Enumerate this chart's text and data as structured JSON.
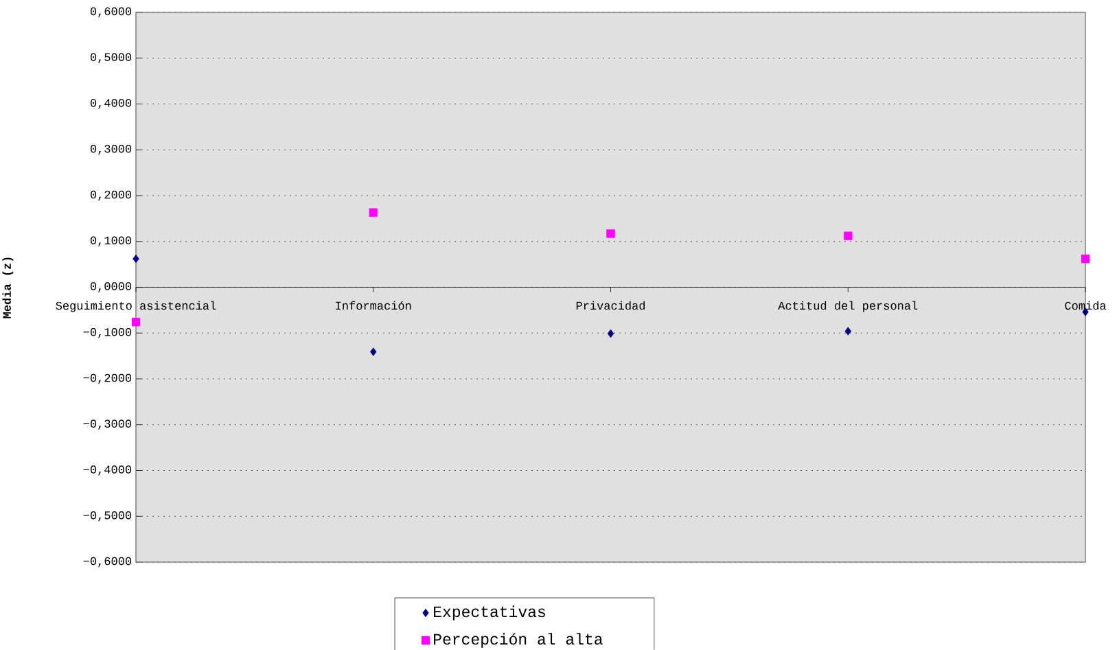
{
  "chart_data": {
    "type": "scatter",
    "ylabel": "Media (z)",
    "categories": [
      "Seguimiento asistencial",
      "Información",
      "Privacidad",
      "Actitud del personal",
      "Comida"
    ],
    "series": [
      {
        "name": "Expectativas",
        "color": "#000080",
        "marker": "diamond",
        "values": [
          0.062,
          -0.141,
          -0.101,
          -0.096,
          -0.054
        ]
      },
      {
        "name": "Percepción al alta",
        "color": "#ff00ff",
        "marker": "square",
        "values": [
          -0.076,
          0.163,
          0.117,
          0.112,
          0.062
        ]
      }
    ],
    "ylim": [
      -0.6,
      0.6
    ],
    "yticks": [
      {
        "value": -0.6,
        "label": "−0,6000"
      },
      {
        "value": -0.5,
        "label": "−0,5000"
      },
      {
        "value": -0.4,
        "label": "−0,4000"
      },
      {
        "value": -0.3,
        "label": "−0,3000"
      },
      {
        "value": -0.2,
        "label": "−0,2000"
      },
      {
        "value": -0.1,
        "label": "−0,1000"
      },
      {
        "value": 0,
        "label": "0,0000"
      },
      {
        "value": 0.1,
        "label": "0,1000"
      },
      {
        "value": 0.2,
        "label": "0,2000"
      },
      {
        "value": 0.3,
        "label": "0,3000"
      },
      {
        "value": 0.4,
        "label": "0,4000"
      },
      {
        "value": 0.5,
        "label": "0,5000"
      },
      {
        "value": 0.6,
        "label": "0,6000"
      }
    ],
    "grid": "y",
    "legend": "bottom"
  }
}
